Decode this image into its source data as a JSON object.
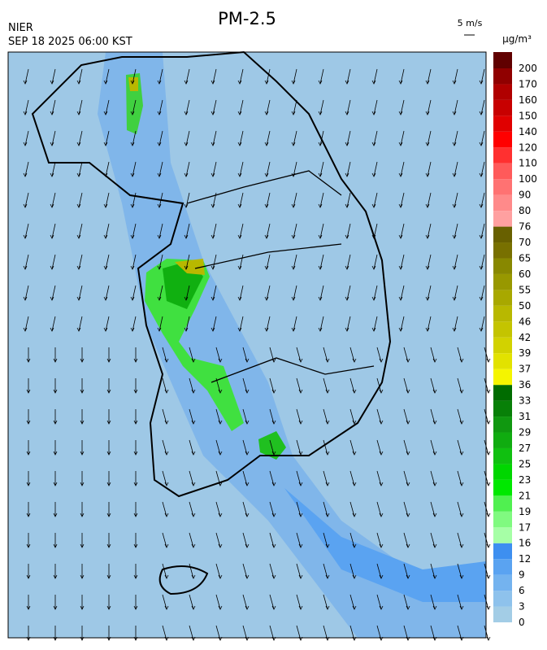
{
  "header": {
    "agency": "NIER",
    "time": "SEP 18 2025 06:00 KST",
    "title": "PM-2.5",
    "wind_scale": "5 m/s",
    "unit": "μg/m³"
  },
  "colorbar": {
    "labels": [
      0,
      3,
      6,
      9,
      12,
      16,
      17,
      19,
      21,
      23,
      25,
      27,
      29,
      31,
      33,
      36,
      37,
      39,
      42,
      46,
      50,
      55,
      60,
      65,
      70,
      76,
      80,
      90,
      100,
      110,
      120,
      140,
      150,
      160,
      170,
      200
    ],
    "colors": [
      "#a3cde6",
      "#8ec2ec",
      "#74b3ef",
      "#5aa3f1",
      "#3d8ff0",
      "#a6ffa6",
      "#80fa80",
      "#50f050",
      "#00e800",
      "#00d600",
      "#10c010",
      "#10ac10",
      "#109810",
      "#088008",
      "#006c00",
      "#f5f500",
      "#e2e200",
      "#d2d200",
      "#c4c400",
      "#b8b800",
      "#a8a800",
      "#989800",
      "#888800",
      "#787000",
      "#686000",
      "#ffa0a0",
      "#ff8a8a",
      "#ff7272",
      "#ff5a5a",
      "#ff3030",
      "#ff0000",
      "#e00000",
      "#c80000",
      "#b00000",
      "#900000",
      "#600000"
    ]
  }
}
